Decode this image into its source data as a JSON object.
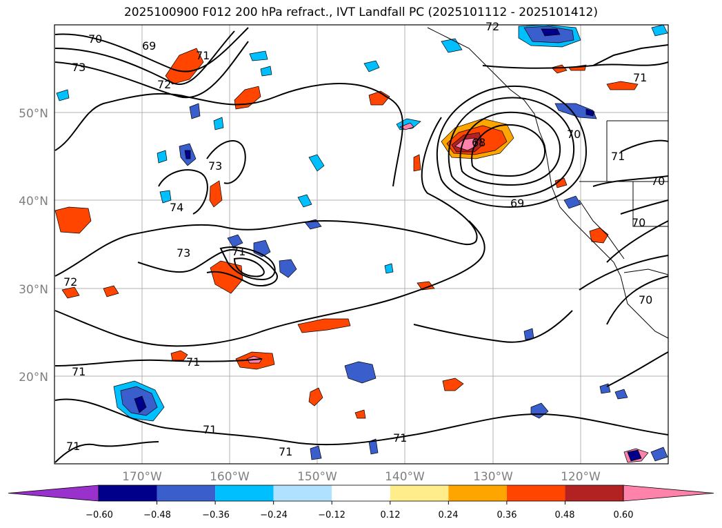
{
  "title": "2025100900 F012 200 hPa refract., IVT Landfall PC (2025101112 - 2025101412)",
  "map": {
    "lat_labels": [
      "50°N",
      "40°N",
      "30°N",
      "20°N"
    ],
    "lon_labels": [
      "170°W",
      "160°W",
      "150°W",
      "140°W",
      "130°W",
      "120°W"
    ],
    "contour_labels": [
      "70",
      "69",
      "73",
      "71",
      "72",
      "72",
      "73",
      "74",
      "73",
      "71",
      "72",
      "68",
      "70",
      "71",
      "69",
      "70",
      "70",
      "70",
      "71",
      "71",
      "71",
      "71",
      "71",
      "71",
      "71"
    ]
  },
  "colorbar": {
    "tick_labels": [
      "−0.60",
      "−0.48",
      "−0.36",
      "−0.24",
      "−0.12",
      "0.12",
      "0.24",
      "0.36",
      "0.48",
      "0.60"
    ],
    "colors": [
      "#9932CC",
      "#00008B",
      "#3A5FCD",
      "#00BFFF",
      "#B0E2FF",
      "#FFFFFF",
      "#FFEC8B",
      "#FFA500",
      "#FF4500",
      "#B22222",
      "#FF82AB"
    ]
  }
}
